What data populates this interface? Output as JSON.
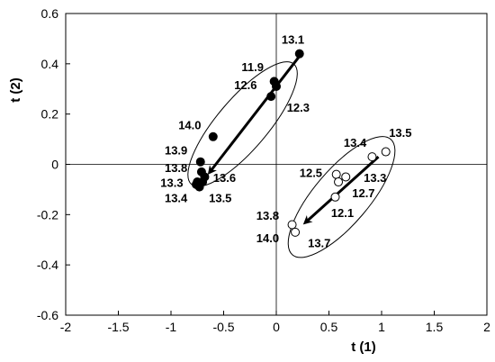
{
  "chart_data": {
    "type": "scatter",
    "xlabel": "t (1)",
    "ylabel": "t (2)",
    "xlim": [
      -2,
      2
    ],
    "ylim": [
      -0.6,
      0.6
    ],
    "xticks": [
      -2,
      -1.5,
      -1,
      -0.5,
      0,
      0.5,
      1,
      1.5,
      2
    ],
    "xtick_labels": [
      "-2",
      "-1.5",
      "-1",
      "-0.5",
      "0",
      "0.5",
      "1",
      "1.5",
      "2"
    ],
    "yticks": [
      -0.6,
      -0.4,
      -0.2,
      0,
      0.2,
      0.4,
      0.6
    ],
    "ytick_labels": [
      "-0.6",
      "-0.4",
      "-0.2",
      "0",
      "0.2",
      "0.4",
      "0.6"
    ],
    "grid": false,
    "series": [
      {
        "marker": "filled-circle",
        "color": "#000000",
        "points": [
          {
            "x": 0.22,
            "y": 0.44
          },
          {
            "x": -0.02,
            "y": 0.33
          },
          {
            "x": 0.0,
            "y": 0.31
          },
          {
            "x": -0.05,
            "y": 0.27
          },
          {
            "x": -0.6,
            "y": 0.11
          },
          {
            "x": -0.72,
            "y": 0.01
          },
          {
            "x": -0.71,
            "y": -0.03
          },
          {
            "x": -0.68,
            "y": -0.05
          },
          {
            "x": -0.75,
            "y": -0.07
          },
          {
            "x": -0.7,
            "y": -0.07
          },
          {
            "x": -0.73,
            "y": -0.09
          },
          {
            "x": -0.76,
            "y": -0.08
          }
        ],
        "labels": [
          {
            "text": "13.1",
            "x": 0.05,
            "y": 0.48
          },
          {
            "text": "11.9",
            "x": -0.33,
            "y": 0.37
          },
          {
            "text": "12.6",
            "x": -0.4,
            "y": 0.3
          },
          {
            "text": "12.3",
            "x": 0.1,
            "y": 0.21
          },
          {
            "text": "14.0",
            "x": -0.93,
            "y": 0.14
          },
          {
            "text": "13.9",
            "x": -1.06,
            "y": 0.04
          },
          {
            "text": "13.8",
            "x": -1.06,
            "y": -0.03
          },
          {
            "text": "13.6",
            "x": -0.6,
            "y": -0.07
          },
          {
            "text": "13.3",
            "x": -1.1,
            "y": -0.09
          },
          {
            "text": "13.4",
            "x": -1.06,
            "y": -0.15
          },
          {
            "text": "13.5",
            "x": -0.64,
            "y": -0.15
          }
        ],
        "arrow": {
          "from": [
            0.22,
            0.43
          ],
          "to": [
            -0.63,
            -0.03
          ]
        },
        "ellipse": {
          "cx": -0.32,
          "cy": 0.16,
          "rx": 0.75,
          "ry": 0.24,
          "angle_deg": 31
        }
      },
      {
        "marker": "open-circle",
        "color": "#000000",
        "points": [
          {
            "x": 1.04,
            "y": 0.05
          },
          {
            "x": 0.91,
            "y": 0.03
          },
          {
            "x": 0.57,
            "y": -0.04
          },
          {
            "x": 0.59,
            "y": -0.07
          },
          {
            "x": 0.66,
            "y": -0.05
          },
          {
            "x": 0.56,
            "y": -0.13
          },
          {
            "x": 0.15,
            "y": -0.24
          },
          {
            "x": 0.18,
            "y": -0.27
          }
        ],
        "labels": [
          {
            "text": "13.5",
            "x": 1.07,
            "y": 0.11
          },
          {
            "text": "13.4",
            "x": 0.64,
            "y": 0.07
          },
          {
            "text": "12.5",
            "x": 0.22,
            "y": -0.05
          },
          {
            "text": "13.3",
            "x": 0.83,
            "y": -0.07
          },
          {
            "text": "12.7",
            "x": 0.72,
            "y": -0.13
          },
          {
            "text": "12.1",
            "x": 0.52,
            "y": -0.21
          },
          {
            "text": "13.8",
            "x": -0.19,
            "y": -0.22
          },
          {
            "text": "14.0",
            "x": -0.19,
            "y": -0.31
          },
          {
            "text": "13.7",
            "x": 0.3,
            "y": -0.33
          }
        ],
        "arrow": {
          "from": [
            0.97,
            0.03
          ],
          "to": [
            0.28,
            -0.23
          ]
        },
        "ellipse": {
          "cx": 0.62,
          "cy": -0.13,
          "rx": 0.72,
          "ry": 0.26,
          "angle_deg": 31
        }
      }
    ]
  }
}
